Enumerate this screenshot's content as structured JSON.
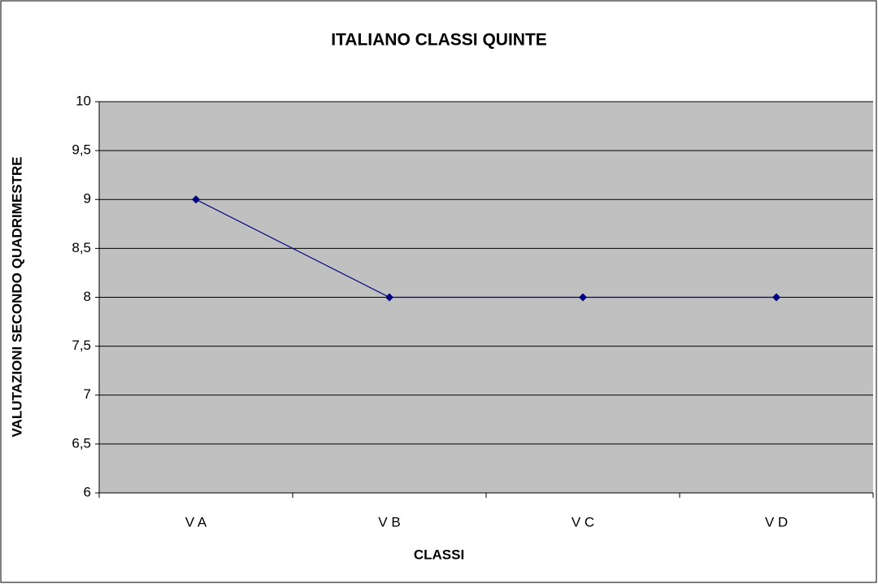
{
  "chart_data": {
    "type": "line",
    "title": "ITALIANO CLASSI QUINTE",
    "x_label": "CLASSI",
    "y_label": "VALUTAZIONI SECONDO QUADRIMESTRE",
    "categories": [
      "V A",
      "V B",
      "V C",
      "V D"
    ],
    "values": [
      9,
      8,
      8,
      8
    ],
    "color": "#000080",
    "ylim": [
      6,
      10
    ],
    "yticks": [
      6,
      {
        "value": 6.5,
        "label": "6,5"
      },
      7,
      {
        "value": 7.5,
        "label": "7,5"
      },
      8,
      {
        "value": 8.5,
        "label": "8,5"
      },
      9,
      {
        "value": 9.5,
        "label": "9,5"
      },
      10
    ],
    "grid": true
  }
}
